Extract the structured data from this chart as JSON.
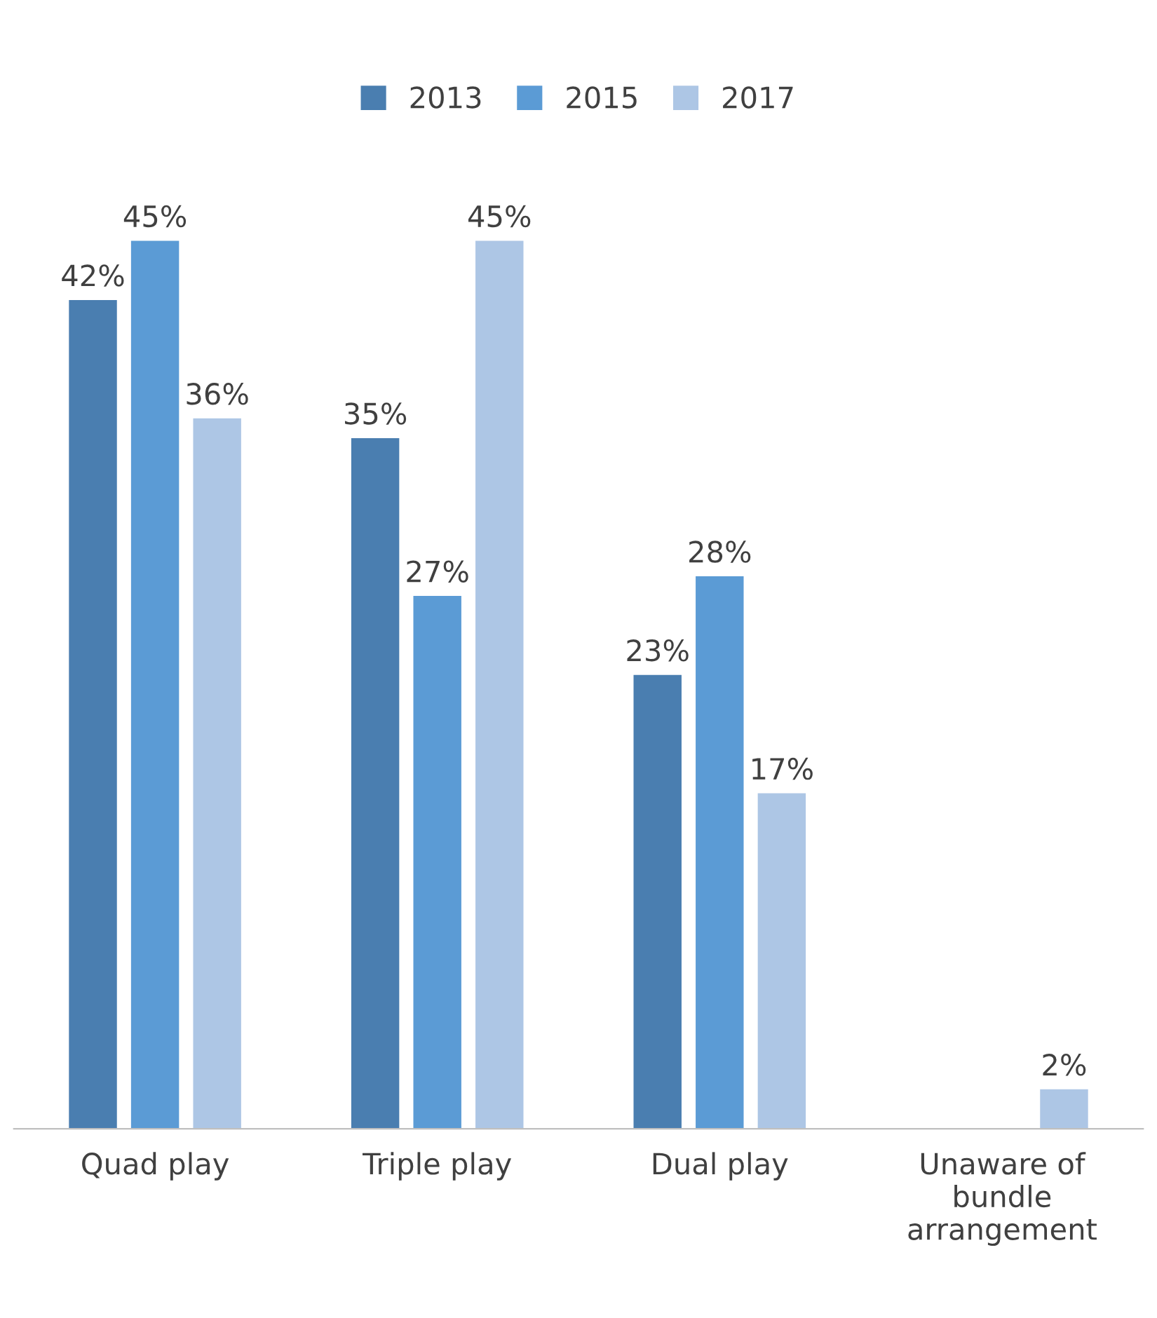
{
  "chart_data": {
    "type": "bar",
    "categories": [
      "Quad play",
      "Triple play",
      "Dual play",
      "Unaware of\nbundle\narrangement"
    ],
    "series": [
      {
        "name": "2013",
        "color": "#4a7eb0",
        "values": [
          42,
          35,
          23,
          null
        ],
        "value_labels": [
          "42%",
          "35%",
          "23%",
          null
        ]
      },
      {
        "name": "2015",
        "color": "#5b9bd5",
        "values": [
          45,
          27,
          28,
          null
        ],
        "value_labels": [
          "45%",
          "27%",
          "28%",
          null
        ]
      },
      {
        "name": "2017",
        "color": "#adc6e5",
        "values": [
          36,
          45,
          17,
          2
        ],
        "value_labels": [
          "36%",
          "45%",
          "17%",
          "2%"
        ]
      }
    ],
    "tick_labels": "x",
    "grid": false,
    "legend": "top"
  }
}
